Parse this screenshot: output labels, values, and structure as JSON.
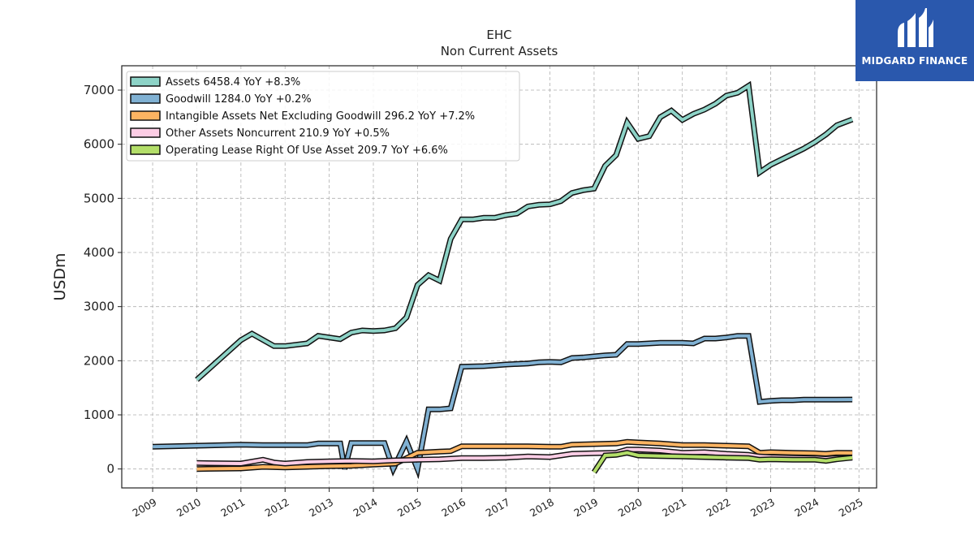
{
  "logo": {
    "text": "MIDGARD FINANCE",
    "color": "#2a58ad"
  },
  "chart_data": {
    "type": "line",
    "title": "EHC",
    "subtitle": "Non Current  Assets",
    "ylabel": "USDm",
    "xlabel": "",
    "xlim": [
      2008.3,
      2025.4
    ],
    "ylim": [
      -350,
      7450
    ],
    "grid": true,
    "legend_position": "top-left",
    "x_ticks": [
      2009,
      2010,
      2011,
      2012,
      2013,
      2014,
      2015,
      2016,
      2017,
      2018,
      2019,
      2020,
      2021,
      2022,
      2023,
      2024,
      2025
    ],
    "x_tick_labels": [
      "2009",
      "2010",
      "2011",
      "2012",
      "2013",
      "2014",
      "2015",
      "2016",
      "2017",
      "2018",
      "2019",
      "2020",
      "2021",
      "2022",
      "2023",
      "2024",
      "2025"
    ],
    "y_ticks": [
      0,
      1000,
      2000,
      3000,
      4000,
      5000,
      6000,
      7000
    ],
    "y_tick_labels": [
      "0",
      "1000",
      "2000",
      "3000",
      "4000",
      "5000",
      "6000",
      "7000"
    ],
    "series": [
      {
        "name": "Assets",
        "legend": "Assets  6458.4 YoY +8.3%",
        "color": "#8dd3c7",
        "x": [
          2010.0,
          2011.0,
          2011.25,
          2011.75,
          2012.0,
          2012.5,
          2012.75,
          2013.25,
          2013.5,
          2013.75,
          2014.0,
          2014.25,
          2014.5,
          2014.75,
          2015.0,
          2015.25,
          2015.5,
          2015.75,
          2016.0,
          2016.25,
          2016.5,
          2016.75,
          2017.0,
          2017.25,
          2017.5,
          2017.75,
          2018.0,
          2018.25,
          2018.5,
          2018.75,
          2019.0,
          2019.25,
          2019.5,
          2019.75,
          2020.0,
          2020.25,
          2020.5,
          2020.75,
          2021.0,
          2021.25,
          2021.5,
          2021.75,
          2022.0,
          2022.25,
          2022.5,
          2022.75,
          2023.0,
          2023.25,
          2023.5,
          2023.75,
          2024.0,
          2024.25,
          2024.5,
          2024.85
        ],
        "values": [
          1650,
          2380,
          2500,
          2270,
          2270,
          2320,
          2460,
          2400,
          2520,
          2560,
          2550,
          2560,
          2600,
          2800,
          3400,
          3580,
          3480,
          4250,
          4610,
          4610,
          4640,
          4640,
          4690,
          4720,
          4850,
          4880,
          4890,
          4950,
          5100,
          5150,
          5180,
          5600,
          5800,
          6400,
          6100,
          6150,
          6500,
          6620,
          6450,
          6560,
          6640,
          6750,
          6900,
          6950,
          7080,
          5480,
          5620,
          5720,
          5820,
          5920,
          6040,
          6180,
          6350,
          6458
        ]
      },
      {
        "name": "Goodwill",
        "legend": "Goodwill  1284.0 YoY +0.2%",
        "color": "#80b1d3",
        "x": [
          2009.0,
          2010.0,
          2011.0,
          2011.5,
          2012.0,
          2012.5,
          2012.75,
          2013.25,
          2013.35,
          2013.5,
          2014.0,
          2014.25,
          2014.45,
          2014.75,
          2015.0,
          2015.25,
          2015.5,
          2015.75,
          2016.0,
          2016.5,
          2017.0,
          2017.5,
          2017.75,
          2018.0,
          2018.25,
          2018.5,
          2018.75,
          2019.0,
          2019.25,
          2019.5,
          2019.75,
          2020.0,
          2020.5,
          2021.0,
          2021.25,
          2021.5,
          2021.75,
          2022.0,
          2022.25,
          2022.5,
          2022.75,
          2023.0,
          2023.25,
          2023.5,
          2023.75,
          2024.0,
          2024.25,
          2024.5,
          2024.85
        ],
        "values": [
          410,
          430,
          450,
          440,
          440,
          440,
          470,
          470,
          0,
          480,
          480,
          480,
          0,
          510,
          0,
          1100,
          1100,
          1120,
          1890,
          1900,
          1930,
          1950,
          1970,
          1980,
          1970,
          2050,
          2060,
          2080,
          2100,
          2110,
          2310,
          2310,
          2330,
          2330,
          2320,
          2410,
          2410,
          2430,
          2460,
          2460,
          1240,
          1260,
          1270,
          1270,
          1280,
          1280,
          1280,
          1282,
          1284
        ]
      },
      {
        "name": "Intangible Assets Net Excluding Goodwill",
        "legend": "Intangible Assets Net Excluding Goodwill  296.2 YoY +7.2%",
        "color": "#fdb462",
        "x": [
          2010.0,
          2011.0,
          2011.5,
          2012.0,
          2012.5,
          2013.0,
          2013.5,
          2014.0,
          2014.5,
          2015.0,
          2015.5,
          2015.75,
          2016.0,
          2016.5,
          2017.0,
          2017.5,
          2018.0,
          2018.25,
          2018.5,
          2019.0,
          2019.5,
          2019.75,
          2020.0,
          2020.5,
          2021.0,
          2021.5,
          2022.0,
          2022.5,
          2022.75,
          2023.0,
          2023.5,
          2024.0,
          2024.25,
          2024.5,
          2024.85
        ],
        "values": [
          0,
          10,
          40,
          30,
          40,
          50,
          60,
          80,
          100,
          300,
          320,
          330,
          420,
          420,
          420,
          420,
          410,
          410,
          450,
          460,
          470,
          500,
          490,
          470,
          440,
          440,
          430,
          420,
          300,
          310,
          300,
          290,
          280,
          300,
          296
        ]
      },
      {
        "name": "Other Assets Noncurrent",
        "legend": "Other Assets Noncurrent  210.9 YoY +0.5%",
        "color": "#fccde5",
        "x": [
          2010.0,
          2011.0,
          2011.5,
          2011.75,
          2012.0,
          2012.5,
          2013.0,
          2013.5,
          2014.0,
          2014.5,
          2015.0,
          2015.5,
          2016.0,
          2016.5,
          2017.0,
          2017.5,
          2018.0,
          2018.5,
          2019.0,
          2019.5,
          2019.75,
          2020.0,
          2020.5,
          2021.0,
          2021.5,
          2022.0,
          2022.5,
          2022.75,
          2023.0,
          2023.5,
          2024.0,
          2024.25,
          2024.5,
          2024.85
        ],
        "values": [
          110,
          100,
          170,
          120,
          100,
          130,
          140,
          150,
          140,
          160,
          170,
          180,
          200,
          200,
          210,
          230,
          220,
          280,
          290,
          300,
          360,
          360,
          340,
          300,
          310,
          280,
          260,
          230,
          220,
          210,
          200,
          190,
          205,
          211
        ]
      },
      {
        "name": "Operating Lease Right Of Use Asset",
        "legend": "Operating Lease Right Of Use Asset  209.7 YoY +6.6%",
        "color": "#b3de69",
        "x": [
          2019.0,
          2019.25,
          2019.5,
          2019.75,
          2020.0,
          2020.5,
          2021.0,
          2021.5,
          2022.0,
          2022.5,
          2022.75,
          2023.0,
          2023.5,
          2024.0,
          2024.25,
          2024.5,
          2024.85
        ],
        "values": [
          -60,
          250,
          260,
          300,
          250,
          240,
          230,
          220,
          210,
          200,
          170,
          180,
          170,
          170,
          150,
          180,
          210
        ]
      }
    ]
  }
}
